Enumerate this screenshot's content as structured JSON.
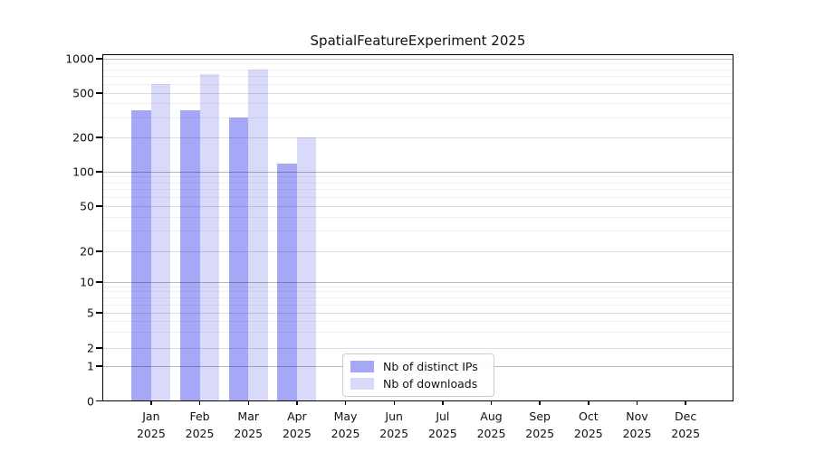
{
  "figure": {
    "title": "SpatialFeatureExperiment 2025"
  },
  "chart_data": {
    "type": "bar",
    "title": "SpatialFeatureExperiment 2025",
    "x_categories": [
      "Jan 2025",
      "Feb 2025",
      "Mar 2025",
      "Apr 2025",
      "May 2025",
      "Jun 2025",
      "Jul 2025",
      "Aug 2025",
      "Sep 2025",
      "Oct 2025",
      "Nov 2025",
      "Dec 2025"
    ],
    "x_tick_line1": [
      "Jan",
      "Feb",
      "Mar",
      "Apr",
      "May",
      "Jun",
      "Jul",
      "Aug",
      "Sep",
      "Oct",
      "Nov",
      "Dec"
    ],
    "x_tick_line2": "2025",
    "y_scale": "symlog",
    "y_ticks": [
      0,
      1,
      2,
      5,
      10,
      20,
      50,
      100,
      200,
      500,
      1000
    ],
    "ylim": [
      0,
      1000
    ],
    "grid": true,
    "series": [
      {
        "name": "Nb of distinct IPs",
        "color": "#a7a7f7",
        "values": [
          352,
          348,
          302,
          118,
          null,
          null,
          null,
          null,
          null,
          null,
          null,
          null
        ]
      },
      {
        "name": "Nb of downloads",
        "color": "#d9d9fa",
        "values": [
          600,
          730,
          800,
          199,
          null,
          null,
          null,
          null,
          null,
          null,
          null,
          null
        ]
      }
    ],
    "legend": {
      "position": "lower center",
      "entries": [
        "Nb of distinct IPs",
        "Nb of downloads"
      ]
    }
  },
  "colors": {
    "bar_distinct_ips": "#a7a7f7",
    "bar_downloads": "#d9d9fa",
    "grid_major": "#bababa",
    "grid_mid": "#dddddd",
    "grid_minor": "#f0f0f0",
    "spine": "#000000",
    "background": "#ffffff"
  }
}
